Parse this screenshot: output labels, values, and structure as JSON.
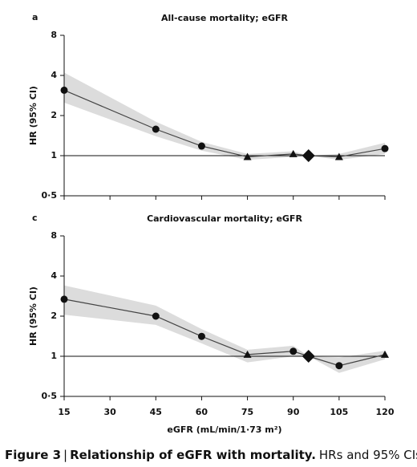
{
  "chart_data": [
    {
      "type": "line",
      "panel_label": "a",
      "title": "All-cause mortality; eGFR",
      "y_label": "HR (95% CI)",
      "x": [
        15,
        45,
        60,
        75,
        90,
        95,
        105,
        120
      ],
      "values": [
        3.1,
        1.58,
        1.18,
        0.98,
        1.03,
        1.0,
        0.98,
        1.13
      ],
      "ci_upper": [
        4.2,
        1.8,
        1.27,
        1.03,
        1.08,
        1.0,
        1.03,
        1.25
      ],
      "ci_lower": [
        2.5,
        1.4,
        1.09,
        0.93,
        0.98,
        1.0,
        0.93,
        1.03
      ],
      "markers": [
        "circle",
        "circle",
        "circle",
        "triangle",
        "triangle",
        "diamond",
        "triangle",
        "circle"
      ],
      "color": "#111111",
      "band_color": "#dcdcdc",
      "log_y": true,
      "reference_line": 1,
      "xlim": [
        15,
        120
      ],
      "xticks": [
        15,
        30,
        45,
        60,
        75,
        90,
        105,
        120
      ],
      "show_xtick_labels": false,
      "ylim": [
        0.5,
        8
      ],
      "yticks": [
        {
          "value": 0.5,
          "label": "0·5"
        },
        1,
        2,
        4,
        8
      ]
    },
    {
      "type": "line",
      "panel_label": "c",
      "title": "Cardiovascular mortality; eGFR",
      "y_label": "HR (95% CI)",
      "x_label": "eGFR (mL/min/1·73 m²)",
      "x": [
        15,
        45,
        60,
        75,
        90,
        95,
        105,
        120
      ],
      "values": [
        2.68,
        2.0,
        1.41,
        1.03,
        1.09,
        1.0,
        0.85,
        1.03
      ],
      "ci_upper": [
        3.4,
        2.4,
        1.6,
        1.12,
        1.2,
        1.0,
        0.98,
        1.1
      ],
      "ci_lower": [
        2.05,
        1.72,
        1.25,
        0.9,
        1.0,
        1.0,
        0.75,
        0.95
      ],
      "markers": [
        "circle",
        "circle",
        "circle",
        "triangle",
        "circle",
        "diamond",
        "circle",
        "triangle"
      ],
      "color": "#111111",
      "band_color": "#dcdcdc",
      "log_y": true,
      "reference_line": 1,
      "xlim": [
        15,
        120
      ],
      "xticks": [
        15,
        30,
        45,
        60,
        75,
        90,
        105,
        120
      ],
      "show_xtick_labels": true,
      "ylim": [
        0.5,
        8
      ],
      "yticks": [
        {
          "value": 0.5,
          "label": "0·5"
        },
        1,
        2,
        4,
        8
      ]
    }
  ],
  "caption": {
    "figure": "Figure 3",
    "separator": "|",
    "heading": "Relationship of eGFR with mortality.",
    "text": "HRs and 95% CIs"
  }
}
